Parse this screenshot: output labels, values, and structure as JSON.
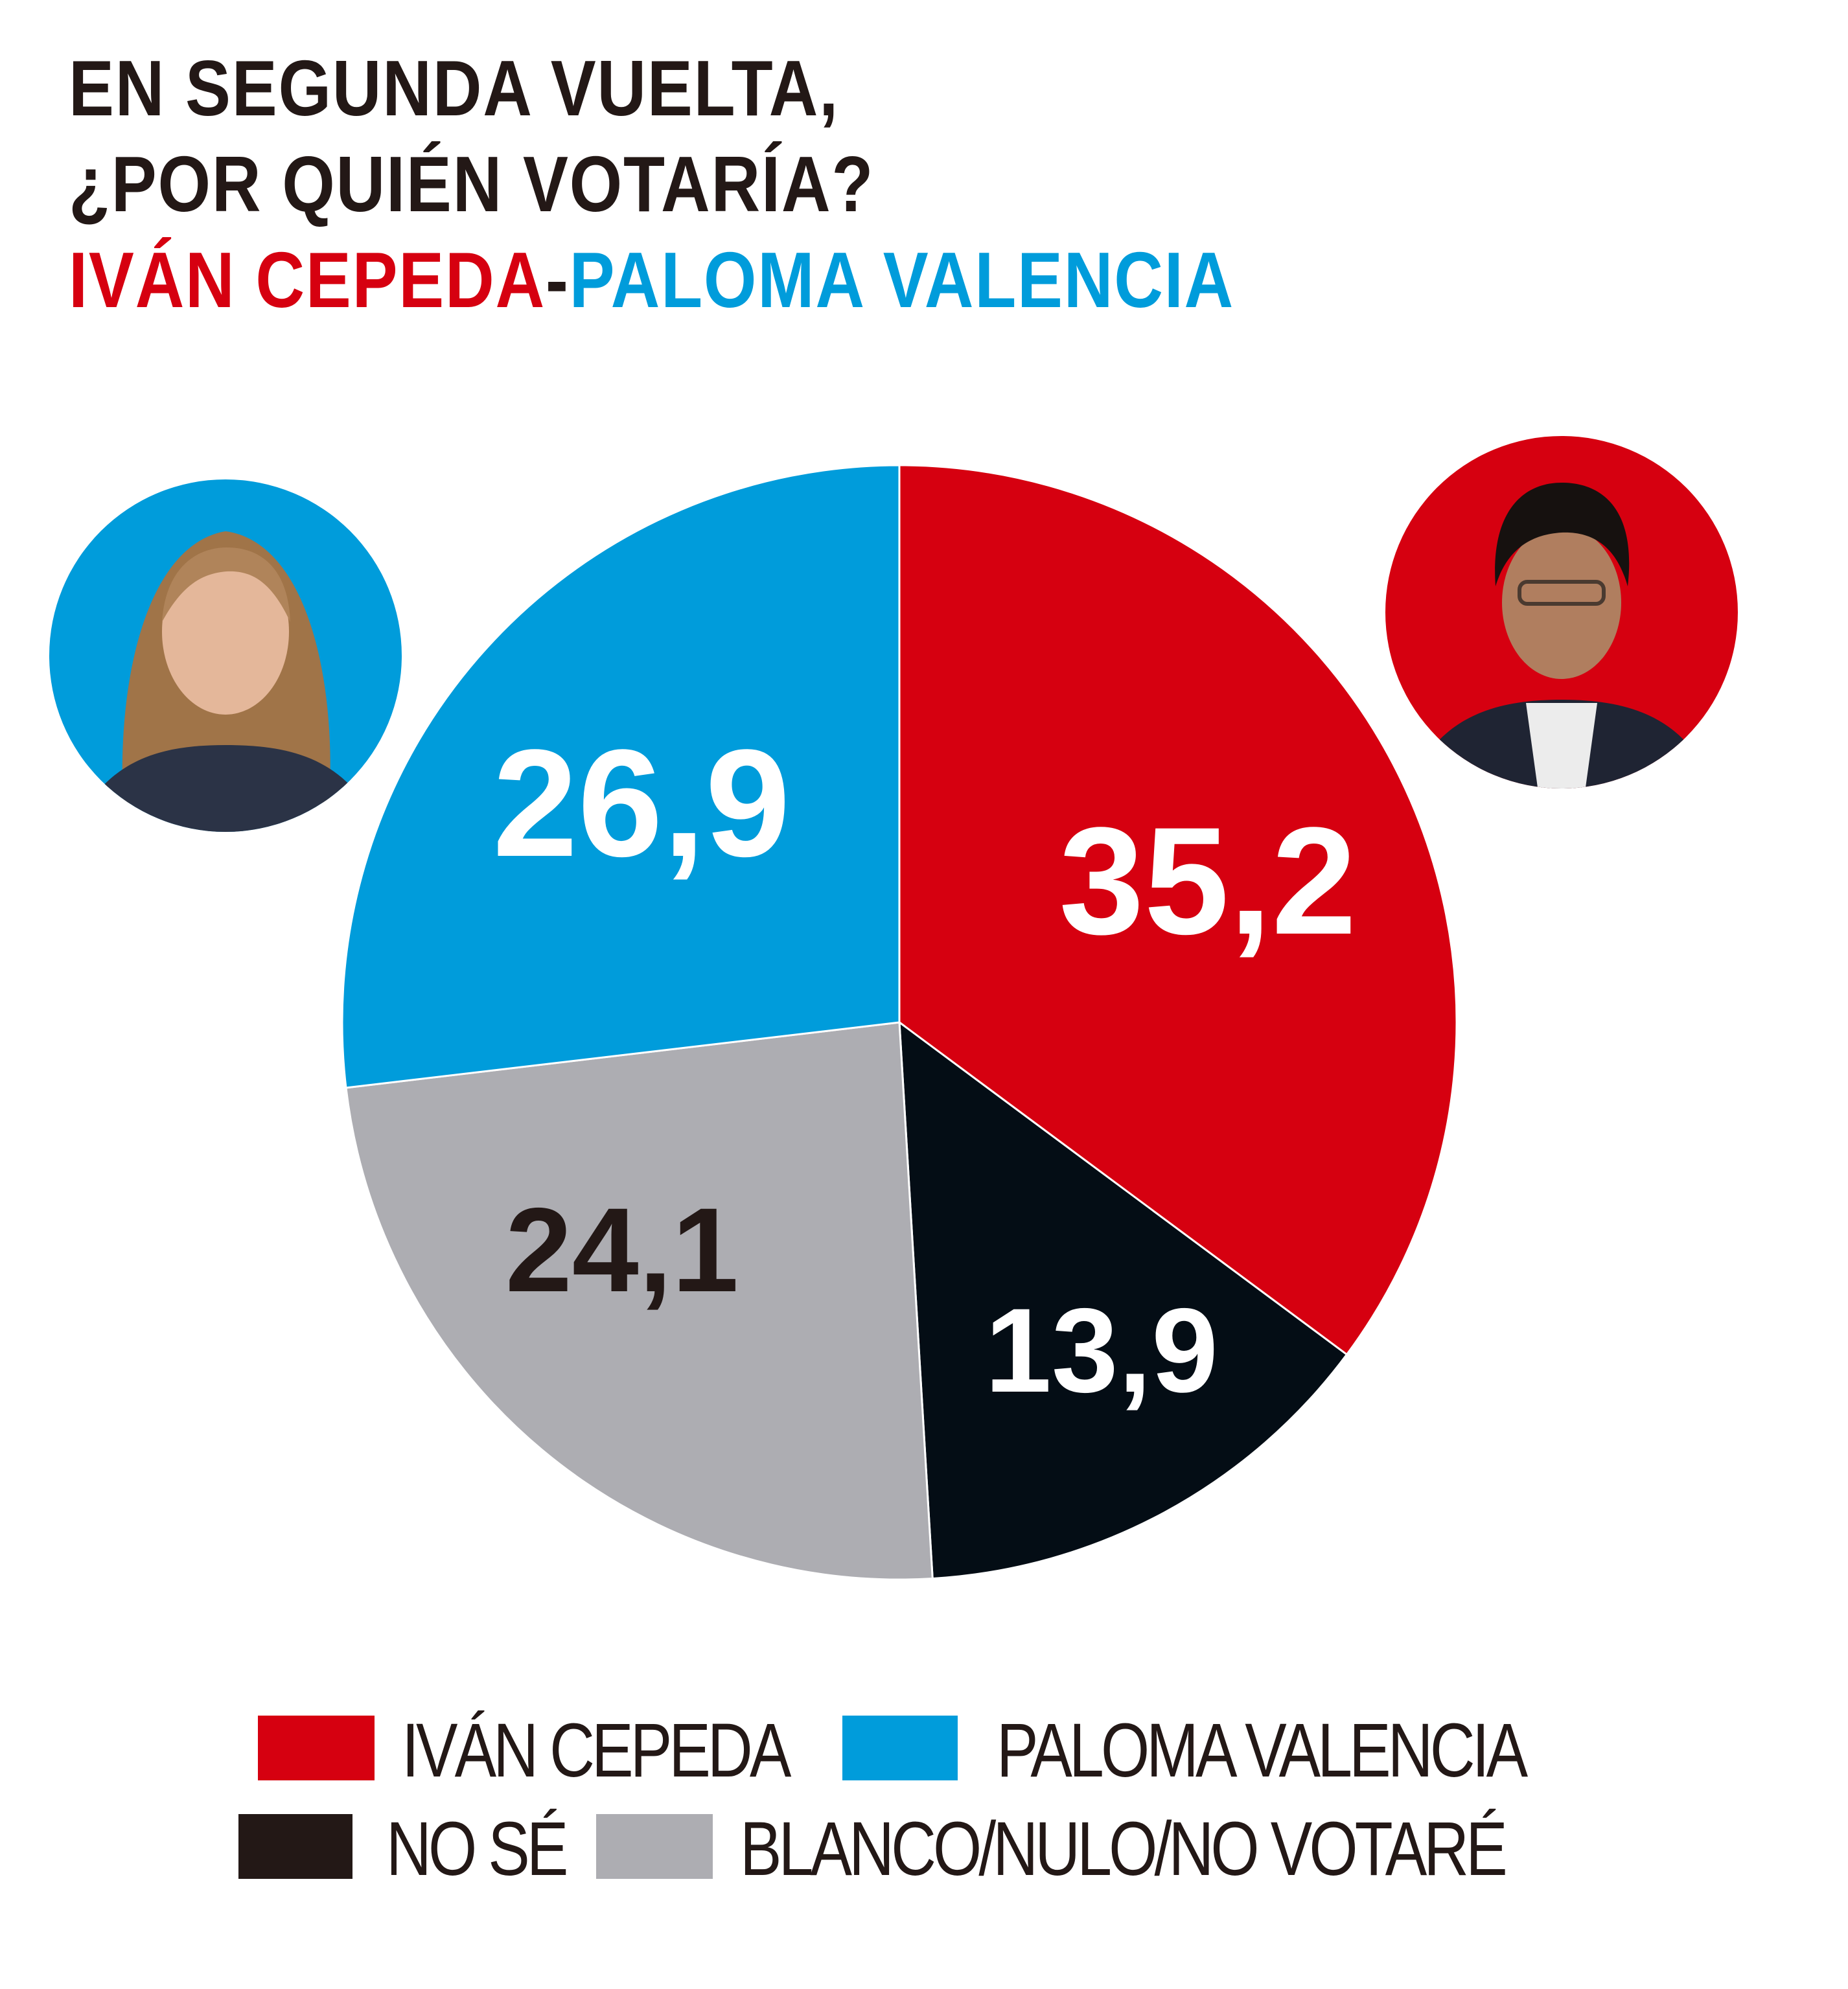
{
  "title": {
    "line1": "EN SEGUNDA VUELTA,",
    "line2": "¿POR QUIÉN VOTARÍA?",
    "candidate_a": "IVÁN CEPEDA",
    "separator": "-",
    "candidate_b": "PALOMA VALENCIA"
  },
  "photos": [
    {
      "name": "Paloma Valencia",
      "background": "#009cdb"
    },
    {
      "name": "Iván Cepeda",
      "background": "#d60010"
    }
  ],
  "chart_data": {
    "type": "pie",
    "slices": [
      {
        "label": "IVÁN CEPEDA",
        "value": 35.2,
        "display": "35,2",
        "color": "#d60010",
        "text_color": "#ffffff"
      },
      {
        "label": "NO SÉ",
        "value": 13.9,
        "display": "13,9",
        "color": "#040d15",
        "text_color": "#ffffff"
      },
      {
        "label": "BLANCO/NULO/NO VOTARÉ",
        "value": 24.1,
        "display": "24,1",
        "color": "#adadb2",
        "text_color": "#231816"
      },
      {
        "label": "PALOMA VALENCIA",
        "value": 26.9,
        "display": "26,9",
        "color": "#009cdb",
        "text_color": "#ffffff"
      }
    ],
    "start_angle": "12 o'clock",
    "direction": "clockwise",
    "legend_position": "bottom"
  },
  "legend": [
    {
      "label": "IVÁN CEPEDA",
      "color": "#d60010"
    },
    {
      "label": "PALOMA VALENCIA",
      "color": "#009cdb"
    },
    {
      "label": "NO SÉ",
      "color": "#231816"
    },
    {
      "label": "BLANCO/NULO/NO VOTARÉ",
      "color": "#adadb2"
    }
  ],
  "colors": {
    "title_text": "#231816",
    "candidate_a": "#d60010",
    "candidate_b": "#009cdb"
  }
}
